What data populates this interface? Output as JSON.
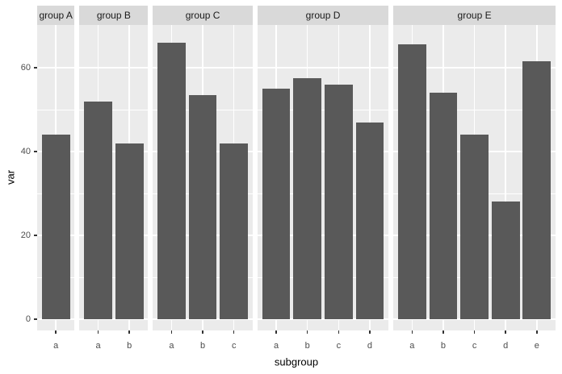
{
  "chart_data": {
    "type": "bar",
    "title": "",
    "xlabel": "subgroup",
    "ylabel": "var",
    "y_ticks": [
      0,
      20,
      40,
      60
    ],
    "y_minor_gridlines": [
      10,
      30,
      50
    ],
    "ylim": [
      -2.7,
      70.2
    ],
    "grid": "on",
    "legend": "none",
    "facets": [
      {
        "label": "group A",
        "categories": [
          "a"
        ],
        "values": [
          44
        ]
      },
      {
        "label": "group B",
        "categories": [
          "a",
          "b"
        ],
        "values": [
          52,
          42
        ]
      },
      {
        "label": "group C",
        "categories": [
          "a",
          "b",
          "c"
        ],
        "values": [
          66,
          53.5,
          42
        ]
      },
      {
        "label": "group D",
        "categories": [
          "a",
          "b",
          "c",
          "d"
        ],
        "values": [
          55,
          57.5,
          56,
          47
        ]
      },
      {
        "label": "group E",
        "categories": [
          "a",
          "b",
          "c",
          "d",
          "e"
        ],
        "values": [
          65.5,
          54,
          44,
          28,
          61.5
        ]
      }
    ],
    "colors": {
      "bar": "#595959",
      "panel_bg": "#EBEBEB",
      "strip_bg": "#D9D9D9",
      "gridline": "#FFFFFF",
      "axis_text": "#4D4D4D",
      "axis_title": "#000000",
      "strip_text": "#1A1A1A",
      "tick_mark": "#333333",
      "background": "#FFFFFF"
    }
  }
}
